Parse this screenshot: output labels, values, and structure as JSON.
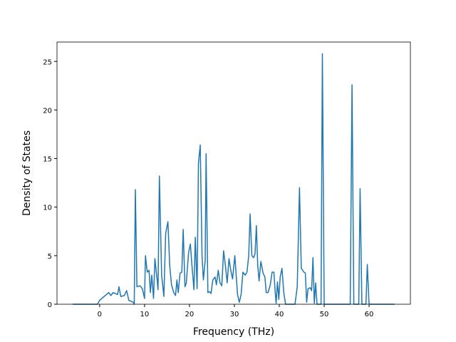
{
  "chart_data": {
    "type": "line",
    "x_label": "Frequency (THz)",
    "y_label": "Density of States",
    "color": "#1f77b4",
    "x": [
      -6,
      -0.5,
      0,
      1,
      2,
      2.5,
      3,
      4,
      4.3,
      4.7,
      5.5,
      6,
      6.5,
      7.5,
      7.7,
      7.95,
      8.3,
      9,
      9.5,
      10,
      10.2,
      10.6,
      11,
      11.3,
      11.6,
      12,
      12.3,
      12.8,
      13,
      13.3,
      13.8,
      14.3,
      14.7,
      15.2,
      15.6,
      16,
      16.5,
      16.9,
      17.2,
      17.5,
      17.9,
      18.3,
      18.6,
      19,
      19.3,
      19.8,
      20.2,
      20.5,
      21,
      21.3,
      21.7,
      22,
      22.4,
      22.8,
      23.1,
      23.5,
      23.7,
      24.1,
      24.5,
      24.8,
      25.2,
      25.7,
      26,
      26.4,
      26.8,
      27.2,
      27.6,
      28,
      28.4,
      28.8,
      29.2,
      29.6,
      30.1,
      30.4,
      30.7,
      31.1,
      31.5,
      31.9,
      32.4,
      32.8,
      33.2,
      33.5,
      33.9,
      34.3,
      34.6,
      34.9,
      35.2,
      35.5,
      35.9,
      36.4,
      36.8,
      37.1,
      37.5,
      38,
      38.4,
      38.8,
      39.1,
      39.3,
      39.6,
      39.9,
      40.2,
      40.6,
      41,
      41.4,
      43.5,
      44,
      44.5,
      44.9,
      45.5,
      45.8,
      46.1,
      46.4,
      46.9,
      47.2,
      47.5,
      47.8,
      48.1,
      48.4,
      49.3,
      49.6,
      50,
      55.8,
      56.2,
      56.6,
      57.7,
      58,
      58.4,
      59.3,
      59.6,
      60,
      65.7
    ],
    "values": [
      0,
      0,
      0.4,
      0.8,
      1.2,
      0.9,
      1.2,
      1.0,
      1.8,
      0.8,
      0.9,
      1.4,
      0.4,
      0.2,
      0,
      11.8,
      1.8,
      1.9,
      1.6,
      0.6,
      5.0,
      3.3,
      3.5,
      1.2,
      3.0,
      0.6,
      4.7,
      2.5,
      1.5,
      13.2,
      3.0,
      0.8,
      7.3,
      8.5,
      4.0,
      2.0,
      1.2,
      0.9,
      2.5,
      1.2,
      3.2,
      3.3,
      7.7,
      1.8,
      2.2,
      5.3,
      6.2,
      4.3,
      1.5,
      6.9,
      1.6,
      14.5,
      16.4,
      5.0,
      2.5,
      4.5,
      15.5,
      1.2,
      1.3,
      1.1,
      2.5,
      2.8,
      2.0,
      3.5,
      2.2,
      1.9,
      5.5,
      4.0,
      2.2,
      4.7,
      3.5,
      2.6,
      5.0,
      3.0,
      1.0,
      0.2,
      1.0,
      3.3,
      3.0,
      3.3,
      5.0,
      9.3,
      5.0,
      4.8,
      5.2,
      8.1,
      4.0,
      2.4,
      4.4,
      3.2,
      2.8,
      1.2,
      1.2,
      2.0,
      3.3,
      3.3,
      1.2,
      0.1,
      2.3,
      0.5,
      2.8,
      3.7,
      1.2,
      0,
      0,
      1.8,
      12.0,
      3.7,
      3.3,
      3.2,
      0.2,
      1.6,
      1.7,
      1.4,
      4.8,
      0.1,
      2.2,
      0,
      0,
      25.8,
      0,
      0,
      22.6,
      0,
      0,
      11.9,
      0,
      0,
      4.1,
      0,
      0
    ],
    "xlim": [
      -9.5,
      69.2
    ],
    "ylim": [
      0,
      27.0
    ],
    "xticks": [
      0,
      10,
      20,
      30,
      40,
      50,
      60
    ],
    "yticks": [
      0,
      5,
      10,
      15,
      20,
      25
    ]
  }
}
